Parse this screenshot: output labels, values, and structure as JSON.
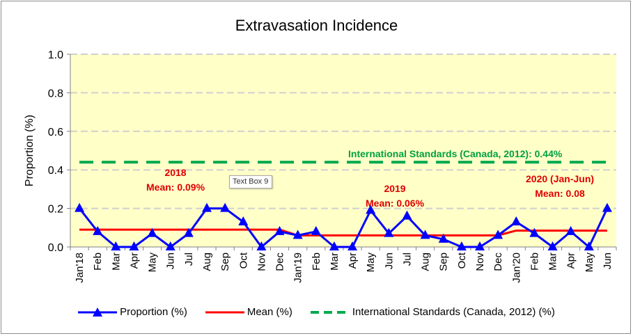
{
  "chart_data": {
    "type": "line",
    "title": "Extravasation Incidence",
    "ylabel": "Proportion (%)",
    "xlabel": "",
    "ylim": [
      0,
      1.0
    ],
    "yticks": [
      "0.0",
      "0.2",
      "0.4",
      "0.6",
      "0.8",
      "1.0"
    ],
    "ytick_values": [
      0,
      0.2,
      0.4,
      0.6,
      0.8,
      1.0
    ],
    "categories": [
      "Jan'18",
      "Feb",
      "Mar",
      "Apr",
      "May",
      "Jun",
      "Jul",
      "Aug",
      "Sep",
      "Oct",
      "Nov",
      "Dec",
      "Jan'19",
      "Feb",
      "Mar",
      "Apr",
      "May",
      "Jun",
      "Jul",
      "Aug",
      "Sep",
      "Oct",
      "Nov",
      "Dec",
      "Jan'20",
      "Feb",
      "Mar",
      "Apr",
      "May",
      "Jun"
    ],
    "series": [
      {
        "name": "Proportion (%)",
        "color": "#0000ff",
        "marker": "triangle",
        "values": [
          0.2,
          0.08,
          0.0,
          0.0,
          0.07,
          0.0,
          0.07,
          0.2,
          0.2,
          0.13,
          0.0,
          0.08,
          0.06,
          0.08,
          0.0,
          0.0,
          0.19,
          0.07,
          0.16,
          0.06,
          0.04,
          0.0,
          0.0,
          0.06,
          0.13,
          0.07,
          0.0,
          0.08,
          0.0,
          0.2
        ]
      },
      {
        "name": "Mean (%)",
        "color": "#ff0000",
        "values": [
          0.09,
          0.09,
          0.09,
          0.09,
          0.09,
          0.09,
          0.09,
          0.09,
          0.09,
          0.09,
          0.09,
          0.09,
          0.06,
          0.06,
          0.06,
          0.06,
          0.06,
          0.06,
          0.06,
          0.06,
          0.06,
          0.06,
          0.06,
          0.06,
          0.085,
          0.085,
          0.085,
          0.085,
          0.085,
          0.085
        ]
      },
      {
        "name": "International Standards (Canada, 2012) (%)",
        "color": "#00a94f",
        "dash": true,
        "values": [
          0.44,
          0.44,
          0.44,
          0.44,
          0.44,
          0.44,
          0.44,
          0.44,
          0.44,
          0.44,
          0.44,
          0.44,
          0.44,
          0.44,
          0.44,
          0.44,
          0.44,
          0.44,
          0.44,
          0.44,
          0.44,
          0.44,
          0.44,
          0.44,
          0.44,
          0.44,
          0.44,
          0.44,
          0.44,
          0.44
        ]
      }
    ],
    "annotations": {
      "standard": "International Standards (Canada, 2012): 0.44%",
      "y2018_title": "2018",
      "y2018_mean": "Mean: 0.09%",
      "y2019_title": "2019",
      "y2019_mean": "Mean: 0.06%",
      "y2020_title": "2020 (Jan-Jun)",
      "y2020_mean": "Mean: 0.08"
    },
    "textbox": "Text Box 9",
    "plot_background": "#ffffc8",
    "legend_position": "bottom"
  }
}
